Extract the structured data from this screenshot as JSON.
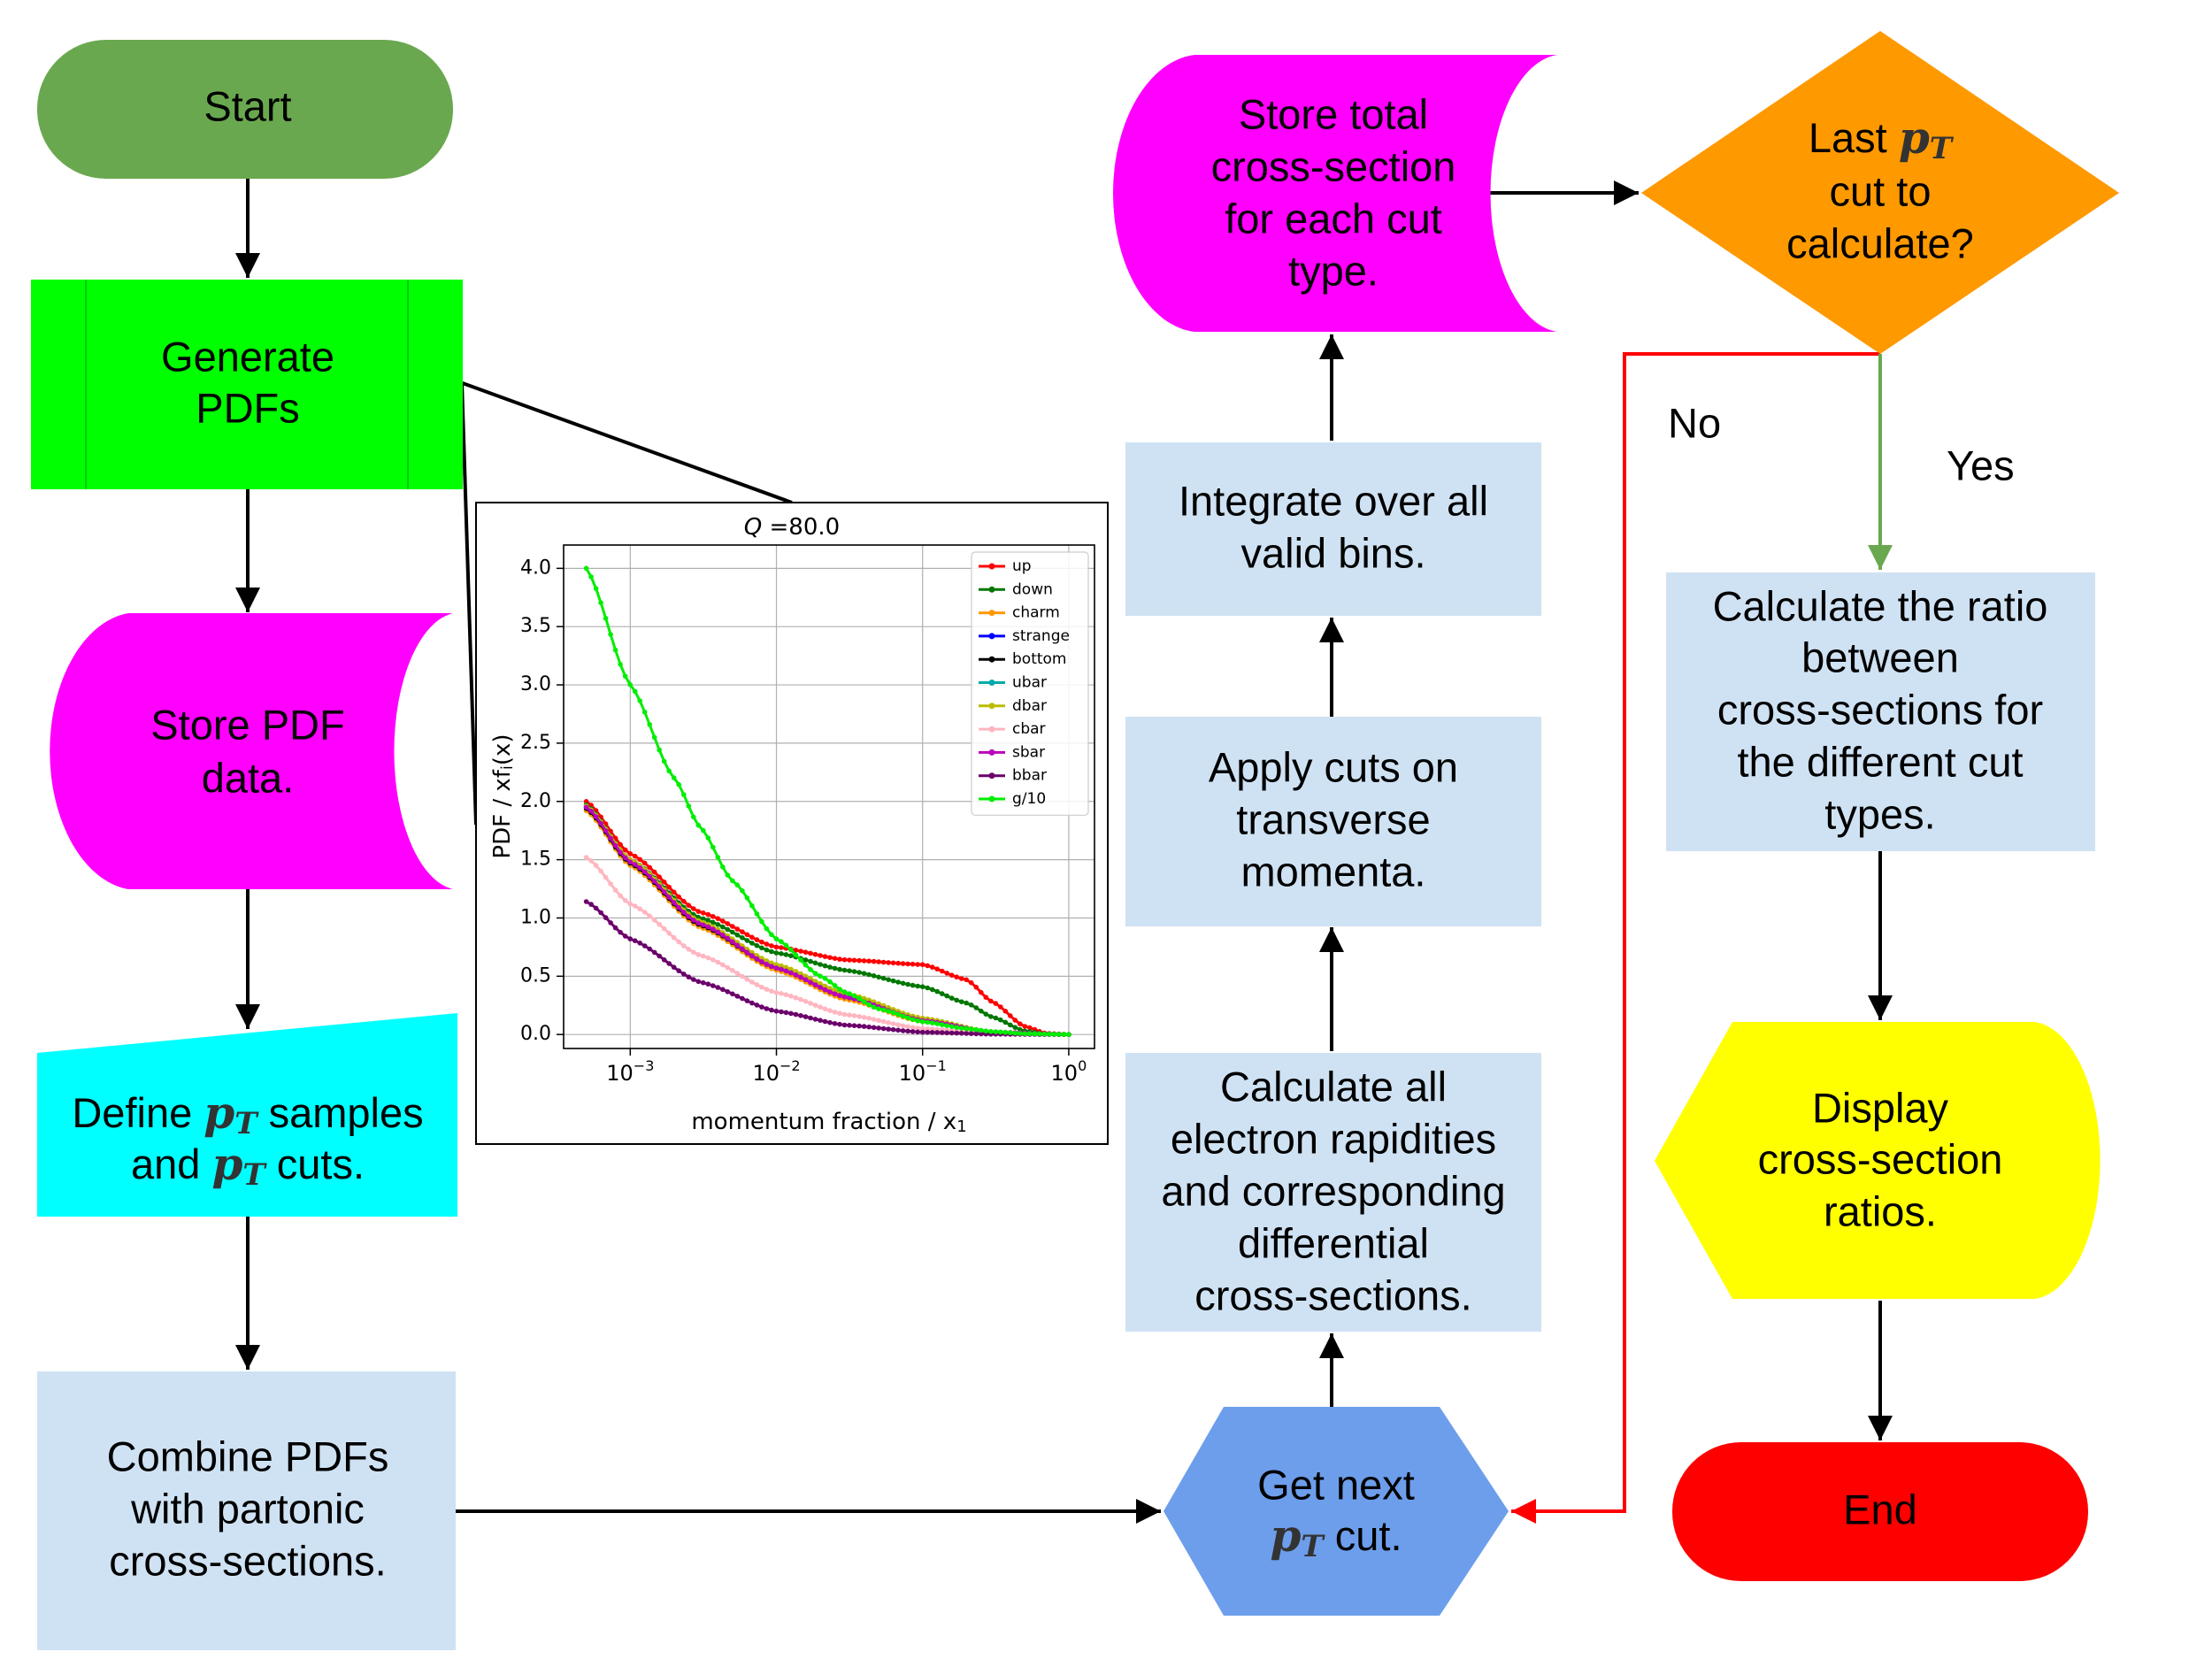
{
  "flowchart": {
    "start": "Start",
    "generate": [
      "Generate",
      "PDFs"
    ],
    "store_pdf": [
      "Store PDF",
      "data."
    ],
    "define": {
      "line1_a": "Define",
      "line1_b": "samples",
      "line2_a": "and",
      "line2_b": "cuts.",
      "math_p": "p",
      "math_sub": "T"
    },
    "combine": [
      "Combine PDFs",
      "with partonic",
      "cross-sections."
    ],
    "get_next": {
      "line1": "Get next",
      "line2_b": "cut.",
      "math_p": "p",
      "math_sub": "T"
    },
    "calc_rapidities": [
      "Calculate all",
      "electron rapidities",
      "and corresponding",
      "differential",
      "cross-sections."
    ],
    "apply_cuts": [
      "Apply cuts on",
      "transverse",
      "momenta."
    ],
    "integrate": [
      "Integrate over all",
      "valid bins."
    ],
    "store_total": [
      "Store total",
      "cross-section",
      "for each cut",
      "type."
    ],
    "decision": {
      "line1_a": "Last",
      "line2": "cut to",
      "line3": "calculate?",
      "math_p": "p",
      "math_sub": "T"
    },
    "label_no": "No",
    "label_yes": "Yes",
    "ratio": [
      "Calculate the ratio",
      "between",
      "cross-sections for",
      "the different cut",
      "types."
    ],
    "display": [
      "Display",
      "cross-section",
      "ratios."
    ],
    "end": "End"
  },
  "colors": {
    "start_fill": "#6aa84f",
    "generate_fill": "#00ff00",
    "store_fill": "#ff00ff",
    "define_fill": "#00ffff",
    "process_fill": "#cfe2f3",
    "get_next_fill": "#6d9eeb",
    "decision_fill": "#ff9900",
    "display_fill": "#ffff00",
    "end_fill": "#ff0000",
    "no_arrow": "#ff0000",
    "yes_arrow": "#6aa84f"
  },
  "chart_data": {
    "type": "line",
    "title_var": "Q",
    "title_value": "=80.0",
    "xlabel": "momentum fraction / x",
    "xlabel_sub": "1",
    "ylabel": "PDF / xf",
    "ylabel_sub": "i",
    "ylabel_tail": "(x)",
    "xscale": "log",
    "xlim": [
      0.00035,
      1.5
    ],
    "ylim": [
      -0.12,
      4.2
    ],
    "xticks": [
      {
        "value": 0.001,
        "base": "10",
        "exp": "−3"
      },
      {
        "value": 0.01,
        "base": "10",
        "exp": "−2"
      },
      {
        "value": 0.1,
        "base": "10",
        "exp": "−1"
      },
      {
        "value": 1,
        "base": "10",
        "exp": "0"
      }
    ],
    "yticks": [
      0.0,
      0.5,
      1.0,
      1.5,
      2.0,
      2.5,
      3.0,
      3.5,
      4.0
    ],
    "ytick_labels": [
      "0.0",
      "0.5",
      "1.0",
      "1.5",
      "2.0",
      "2.5",
      "3.0",
      "3.5",
      "4.0"
    ],
    "grid": true,
    "legend_position": "top-right",
    "series": [
      {
        "name": "up",
        "color": "#ff0000",
        "x": [
          0.0005,
          0.001,
          0.003,
          0.01,
          0.03,
          0.1,
          0.2,
          0.3,
          0.5,
          0.7,
          1.0
        ],
        "y": [
          2.0,
          1.55,
          1.05,
          0.75,
          0.64,
          0.6,
          0.47,
          0.28,
          0.07,
          0.01,
          0.0
        ]
      },
      {
        "name": "down",
        "color": "#007700",
        "x": [
          0.0005,
          0.001,
          0.003,
          0.01,
          0.03,
          0.1,
          0.2,
          0.3,
          0.5,
          0.7,
          1.0
        ],
        "y": [
          1.97,
          1.5,
          1.0,
          0.7,
          0.55,
          0.41,
          0.27,
          0.15,
          0.03,
          0.005,
          0.0
        ]
      },
      {
        "name": "charm",
        "color": "#ff9900",
        "x": [
          0.0005,
          0.001,
          0.003,
          0.01,
          0.03,
          0.1,
          0.3,
          1.0
        ],
        "y": [
          1.92,
          1.45,
          0.92,
          0.55,
          0.3,
          0.11,
          0.02,
          0.0
        ]
      },
      {
        "name": "strange",
        "color": "#0000ff",
        "x": [
          0.0005,
          0.001,
          0.003,
          0.01,
          0.03,
          0.1,
          0.3,
          1.0
        ],
        "y": [
          1.95,
          1.48,
          0.95,
          0.58,
          0.33,
          0.13,
          0.02,
          0.0
        ]
      },
      {
        "name": "bottom",
        "color": "#000000",
        "x": [
          0.0005,
          0.001,
          0.003,
          0.01,
          0.03,
          0.1,
          0.3,
          1.0
        ],
        "y": [
          1.94,
          1.47,
          0.94,
          0.57,
          0.32,
          0.12,
          0.02,
          0.0
        ]
      },
      {
        "name": "ubar",
        "color": "#00aaaa",
        "x": [
          0.0005,
          0.001,
          0.003,
          0.01,
          0.03,
          0.1,
          0.3,
          1.0
        ],
        "y": [
          1.96,
          1.49,
          0.96,
          0.59,
          0.34,
          0.13,
          0.02,
          0.0
        ]
      },
      {
        "name": "dbar",
        "color": "#bbbb00",
        "x": [
          0.0005,
          0.001,
          0.003,
          0.01,
          0.03,
          0.1,
          0.3,
          1.0
        ],
        "y": [
          1.96,
          1.5,
          0.97,
          0.6,
          0.35,
          0.14,
          0.02,
          0.0
        ]
      },
      {
        "name": "cbar",
        "color": "#ffb6c1",
        "x": [
          0.0005,
          0.001,
          0.003,
          0.01,
          0.03,
          0.1,
          0.3,
          1.0
        ],
        "y": [
          1.52,
          1.12,
          0.68,
          0.36,
          0.17,
          0.05,
          0.01,
          0.0
        ]
      },
      {
        "name": "sbar",
        "color": "#bb00bb",
        "x": [
          0.0005,
          0.001,
          0.003,
          0.01,
          0.03,
          0.1,
          0.3,
          1.0
        ],
        "y": [
          1.95,
          1.48,
          0.95,
          0.57,
          0.32,
          0.12,
          0.02,
          0.0
        ]
      },
      {
        "name": "bbar",
        "color": "#6a006a",
        "x": [
          0.0005,
          0.001,
          0.003,
          0.01,
          0.03,
          0.1,
          0.3,
          1.0
        ],
        "y": [
          1.14,
          0.82,
          0.45,
          0.2,
          0.08,
          0.02,
          0.003,
          0.0
        ]
      },
      {
        "name": "g/10",
        "color": "#00ee00",
        "x": [
          0.0005,
          0.001,
          0.002,
          0.003,
          0.005,
          0.01,
          0.02,
          0.03,
          0.05,
          0.1,
          0.2,
          0.3,
          0.5,
          1.0
        ],
        "y": [
          4.0,
          3.0,
          2.2,
          1.78,
          1.32,
          0.82,
          0.5,
          0.36,
          0.22,
          0.11,
          0.05,
          0.025,
          0.007,
          0.0
        ]
      }
    ]
  }
}
